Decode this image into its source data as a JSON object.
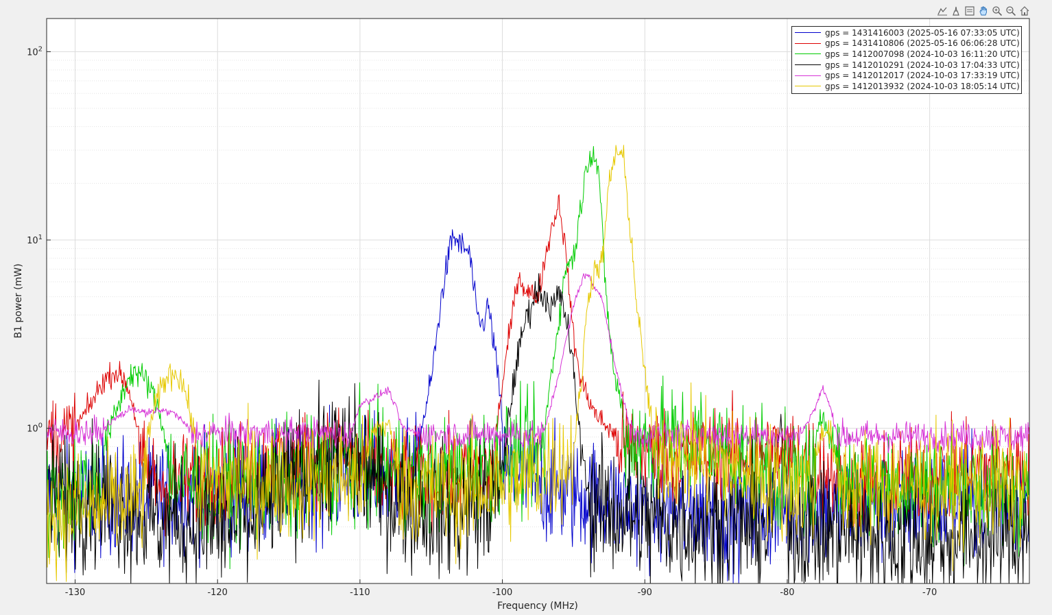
{
  "toolbar": {
    "icons": [
      "data-tips-icon",
      "brush-icon",
      "legend-toggle-icon",
      "pan-icon",
      "zoom-in-icon",
      "zoom-out-icon",
      "home-icon"
    ]
  },
  "chart_data": {
    "type": "line",
    "title": "",
    "xlabel": "Frequency (MHz)",
    "ylabel": "B1 power (mW)",
    "xlim": [
      -132,
      -63
    ],
    "ylim": [
      0.15,
      150
    ],
    "yscale": "log",
    "grid": true,
    "minor_grid_y": true,
    "legend_position": "top-right",
    "x_ticks": [
      -130,
      -120,
      -110,
      -100,
      -90,
      -80,
      -70
    ],
    "x_tick_labels": [
      "-130",
      "-120",
      "-110",
      "-100",
      "-90",
      "-80",
      "-70"
    ],
    "y_ticks": [
      1,
      10,
      100
    ],
    "y_tick_labels": [
      {
        "base": "10",
        "exp": "0"
      },
      {
        "base": "10",
        "exp": "1"
      },
      {
        "base": "10",
        "exp": "2"
      }
    ],
    "series": [
      {
        "name": "gps = 1431416003 (2025-05-16 07:33:05 UTC)",
        "color": "#0000cc",
        "baseline": [
          [
            -132,
            0.42
          ],
          [
            -120,
            0.45
          ],
          [
            -114,
            0.5
          ],
          [
            -112,
            0.55
          ],
          [
            -106,
            0.58
          ],
          [
            -105,
            0.65
          ],
          [
            -103,
            0.8
          ],
          [
            -99,
            0.55
          ],
          [
            -96,
            0.47
          ],
          [
            -90,
            0.37
          ],
          [
            -85,
            0.35
          ],
          [
            -75,
            0.38
          ],
          [
            -63,
            0.42
          ]
        ],
        "peaks": [
          {
            "x": [
              -106,
              -105,
              -104.2,
              -103.5,
              -103,
              -102.3,
              -101.8,
              -101.4,
              -101,
              -100.5,
              -100
            ],
            "y": [
              0.75,
              1.8,
              5.5,
              10.5,
              9.5,
              8.5,
              4.0,
              3.5,
              4.5,
              2.5,
              1.1
            ]
          }
        ],
        "noise": 0.3
      },
      {
        "name": "gps = 1431410806 (2025-05-16 06:06:28 UTC)",
        "color": "#dd0000",
        "baseline": [
          [
            -132,
            0.9
          ],
          [
            -129,
            0.92
          ],
          [
            -126,
            0.7
          ],
          [
            -124,
            0.5
          ],
          [
            -118,
            0.6
          ],
          [
            -112,
            0.75
          ],
          [
            -108,
            0.55
          ],
          [
            -104,
            0.55
          ],
          [
            -100,
            0.62
          ],
          [
            -99.5,
            0.9
          ],
          [
            -92,
            0.85
          ],
          [
            -88,
            0.7
          ],
          [
            -80,
            0.75
          ],
          [
            -75,
            0.5
          ],
          [
            -63,
            0.65
          ]
        ],
        "peaks": [
          {
            "x": [
              -130,
              -129,
              -128,
              -127.2,
              -126.5,
              -126,
              -125.5
            ],
            "y": [
              1.0,
              1.3,
              1.8,
              2.0,
              1.8,
              1.4,
              0.9
            ]
          },
          {
            "x": [
              -100.5,
              -99.5,
              -98.9,
              -98.3,
              -97.5,
              -97,
              -96.5,
              -96,
              -95.5,
              -95,
              -94.5,
              -93.5,
              -92
            ],
            "y": [
              0.9,
              3.2,
              6.5,
              5.3,
              5.0,
              8.0,
              12.0,
              16.0,
              8.0,
              3.0,
              1.8,
              1.2,
              0.9
            ]
          }
        ],
        "noise": 0.25
      },
      {
        "name": "gps = 1412007098 (2024-10-03 16:11:20 UTC)",
        "color": "#00cc00",
        "baseline": [
          [
            -132,
            0.38
          ],
          [
            -127,
            0.65
          ],
          [
            -124,
            0.6
          ],
          [
            -122,
            0.5
          ],
          [
            -115,
            0.52
          ],
          [
            -110,
            0.65
          ],
          [
            -105,
            0.52
          ],
          [
            -101,
            0.65
          ],
          [
            -99,
            0.7
          ],
          [
            -97,
            0.72
          ],
          [
            -90,
            0.85
          ],
          [
            -86,
            0.85
          ],
          [
            -80,
            0.55
          ],
          [
            -70,
            0.5
          ],
          [
            -63,
            0.45
          ]
        ],
        "peaks": [
          {
            "x": [
              -128,
              -127,
              -126.2,
              -125.8,
              -125,
              -124.2,
              -123.5
            ],
            "y": [
              0.8,
              1.3,
              1.9,
              2.0,
              1.8,
              1.3,
              0.8
            ]
          },
          {
            "x": [
              -97,
              -96,
              -95.5,
              -95,
              -94.5,
              -94,
              -93.6,
              -93.2,
              -92.8,
              -92.2,
              -91.5
            ],
            "y": [
              1.1,
              4.0,
              7.5,
              8.0,
              15.0,
              27.0,
              30.0,
              22.0,
              6.0,
              2.0,
              1.2
            ]
          },
          {
            "x": [
              -78,
              -77.5,
              -77,
              -76.5
            ],
            "y": [
              0.8,
              1.2,
              0.95,
              0.7
            ]
          }
        ],
        "noise": 0.3
      },
      {
        "name": "gps = 1412010291 (2024-10-03 17:04:33 UTC)",
        "color": "#000000",
        "baseline": [
          [
            -132,
            0.45
          ],
          [
            -128,
            0.42
          ],
          [
            -124,
            0.32
          ],
          [
            -118,
            0.3
          ],
          [
            -114,
            0.6
          ],
          [
            -111,
            0.75
          ],
          [
            -108,
            0.45
          ],
          [
            -104,
            0.35
          ],
          [
            -101,
            0.4
          ],
          [
            -99,
            0.55
          ],
          [
            -95,
            0.42
          ],
          [
            -90,
            0.32
          ],
          [
            -80,
            0.3
          ],
          [
            -70,
            0.25
          ],
          [
            -63,
            0.28
          ]
        ],
        "peaks": [
          {
            "x": [
              -100,
              -99.2,
              -98.5,
              -98,
              -97.5,
              -97,
              -96.5,
              -96,
              -95.5,
              -95,
              -94.5,
              -94
            ],
            "y": [
              0.6,
              1.8,
              3.5,
              4.5,
              5.5,
              5.0,
              4.3,
              5.2,
              3.8,
              2.0,
              0.8,
              0.5
            ]
          },
          {
            "x": [
              -81,
              -80.5,
              -80
            ],
            "y": [
              0.6,
              1.0,
              0.5
            ]
          }
        ],
        "noise": 0.35
      },
      {
        "name": "gps = 1412012017 (2024-10-03 17:33:19 UTC)",
        "color": "#d633d6",
        "baseline": [
          [
            -132,
            0.95
          ],
          [
            -63,
            0.9
          ]
        ],
        "peaks": [
          {
            "x": [
              -128,
              -127,
              -126,
              -125,
              -124,
              -123,
              -122
            ],
            "y": [
              1.0,
              1.15,
              1.28,
              1.2,
              1.25,
              1.2,
              1.0
            ]
          },
          {
            "x": [
              -110.5,
              -110,
              -109,
              -108,
              -107.5,
              -107,
              -106
            ],
            "y": [
              1.0,
              1.35,
              1.45,
              1.6,
              1.3,
              1.0,
              0.95
            ]
          },
          {
            "x": [
              -97,
              -96,
              -95,
              -94.3,
              -94,
              -93.5,
              -93,
              -92,
              -91
            ],
            "y": [
              1.0,
              2.0,
              4.5,
              6.5,
              6.5,
              5.5,
              5.0,
              2.0,
              1.0
            ]
          },
          {
            "x": [
              -79,
              -78,
              -77.5,
              -77,
              -76.5
            ],
            "y": [
              0.95,
              1.3,
              1.65,
              1.3,
              0.95
            ]
          }
        ],
        "noise": 0.08
      },
      {
        "name": "gps = 1412013932 (2024-10-03 18:05:14 UTC)",
        "color": "#e6c800",
        "baseline": [
          [
            -132,
            0.35
          ],
          [
            -128,
            0.38
          ],
          [
            -122,
            0.5
          ],
          [
            -115,
            0.52
          ],
          [
            -110,
            0.55
          ],
          [
            -103,
            0.45
          ],
          [
            -98,
            0.55
          ],
          [
            -95,
            0.7
          ],
          [
            -88,
            0.75
          ],
          [
            -80,
            0.5
          ],
          [
            -70,
            0.5
          ],
          [
            -63,
            0.48
          ]
        ],
        "peaks": [
          {
            "x": [
              -125,
              -124,
              -123.5,
              -123,
              -122.5,
              -122,
              -121.5
            ],
            "y": [
              0.9,
              1.6,
              1.9,
              2.0,
              1.8,
              1.3,
              0.8
            ]
          },
          {
            "x": [
              -109.5,
              -109,
              -108,
              -107.5
            ],
            "y": [
              0.7,
              1.0,
              1.05,
              0.7
            ]
          },
          {
            "x": [
              -95,
              -94.5,
              -94,
              -93.5,
              -93,
              -92.5,
              -92,
              -91.5,
              -91,
              -90.5,
              -90,
              -89.5
            ],
            "y": [
              0.8,
              1.6,
              5.0,
              7.0,
              7.5,
              20.0,
              30.0,
              27.0,
              11.0,
              4.0,
              2.0,
              1.0
            ]
          },
          {
            "x": [
              -78,
              -77.5,
              -77,
              -76.5
            ],
            "y": [
              0.7,
              1.0,
              0.95,
              0.6
            ]
          }
        ],
        "noise": 0.3
      }
    ]
  }
}
